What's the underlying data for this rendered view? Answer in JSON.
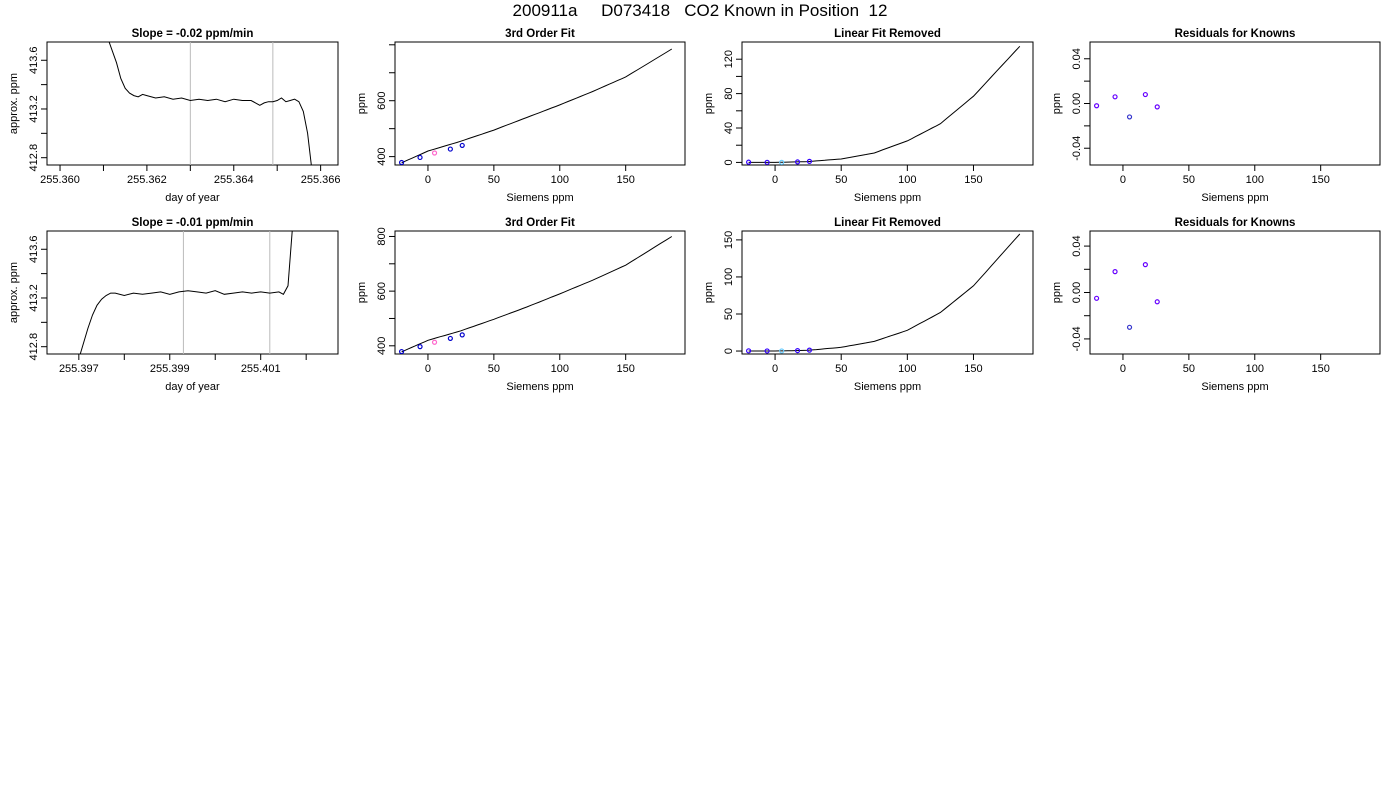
{
  "main_title": "200911a     D073418   CO2 Known in Position  12",
  "chart_data": [
    {
      "type": "line",
      "title": "Slope =  -0.02  ppm/min",
      "xlabel": "day of year",
      "ylabel": "approx. ppm",
      "xlim": [
        255.3597,
        255.3664
      ],
      "ylim": [
        412.74,
        413.75
      ],
      "xticks": [
        255.36,
        255.361,
        255.362,
        255.363,
        255.364,
        255.365,
        255.366
      ],
      "xtick_labels": [
        "255.360",
        "",
        "255.362",
        "",
        "255.364",
        "",
        "255.366"
      ],
      "yticks": [
        412.8,
        413.0,
        413.2,
        413.4,
        413.6
      ],
      "ytick_labels": [
        "412.8",
        "",
        "413.2",
        "",
        "413.6"
      ],
      "vlines": [
        255.363,
        255.3649
      ],
      "series": [
        {
          "x": [
            255.3611,
            255.3613,
            255.3614,
            255.3615,
            255.3616,
            255.3617,
            255.3618,
            255.3619,
            255.362,
            255.3622,
            255.3624,
            255.3626,
            255.3628,
            255.363,
            255.3632,
            255.3634,
            255.3636,
            255.3638,
            255.364,
            255.3642,
            255.3644,
            255.3645,
            255.3646,
            255.3647,
            255.3648,
            255.3649,
            255.365,
            255.3651,
            255.3652,
            255.3653,
            255.3654,
            255.3655,
            255.3656,
            255.3657,
            255.3658
          ],
          "y": [
            413.78,
            413.58,
            413.45,
            413.37,
            413.33,
            413.31,
            413.3,
            413.32,
            413.31,
            413.29,
            413.3,
            413.28,
            413.29,
            413.27,
            413.28,
            413.27,
            413.28,
            413.26,
            413.28,
            413.27,
            413.27,
            413.25,
            413.23,
            413.25,
            413.26,
            413.26,
            413.27,
            413.29,
            413.26,
            413.27,
            413.28,
            413.26,
            413.18,
            413.0,
            412.7
          ]
        }
      ]
    },
    {
      "type": "line",
      "title": "3rd Order Fit",
      "xlabel": "Siemens ppm",
      "ylabel": "ppm",
      "xlim": [
        -25,
        195
      ],
      "ylim": [
        370,
        810
      ],
      "xticks": [
        0,
        50,
        100,
        150
      ],
      "xtick_labels": [
        "0",
        "50",
        "100",
        "150"
      ],
      "yticks": [
        400,
        500,
        600,
        700,
        800
      ],
      "ytick_labels": [
        "400",
        "",
        "600",
        "",
        ""
      ],
      "series": [
        {
          "curve": "fit",
          "x": [
            -20,
            0,
            25,
            50,
            75,
            100,
            125,
            150,
            185
          ],
          "y": [
            378,
            420,
            455,
            495,
            540,
            585,
            633,
            685,
            785
          ]
        }
      ],
      "points": [
        {
          "x": [
            -20,
            -6,
            17,
            26
          ],
          "y": [
            379,
            397,
            427,
            440
          ],
          "color": "#0000cc"
        },
        {
          "x": [
            5
          ],
          "y": [
            413
          ],
          "color": "#ff66cc"
        }
      ]
    },
    {
      "type": "line",
      "title": "Linear Fit Removed",
      "xlabel": "Siemens ppm",
      "ylabel": "ppm",
      "xlim": [
        -25,
        195
      ],
      "ylim": [
        -3,
        140
      ],
      "xticks": [
        0,
        50,
        100,
        150
      ],
      "xtick_labels": [
        "0",
        "50",
        "100",
        "150"
      ],
      "yticks": [
        0,
        20,
        40,
        60,
        80,
        100,
        120
      ],
      "ytick_labels": [
        "0",
        "",
        "40",
        "",
        "80",
        "",
        "120"
      ],
      "series": [
        {
          "curve": "fit",
          "x": [
            -20,
            0,
            25,
            50,
            75,
            100,
            125,
            150,
            185
          ],
          "y": [
            0,
            0,
            1,
            4,
            11,
            25,
            45,
            77,
            135
          ]
        }
      ],
      "points": [
        {
          "x": [
            -20,
            -6,
            17,
            26
          ],
          "y": [
            0.3,
            0.1,
            0.6,
            1.2
          ],
          "color": "#3300ff"
        },
        {
          "x": [
            5
          ],
          "y": [
            0.1
          ],
          "color": "#66ccff"
        }
      ]
    },
    {
      "type": "scatter",
      "title": "Residuals for Knowns",
      "xlabel": "Siemens ppm",
      "ylabel": "ppm",
      "xlim": [
        -25,
        195
      ],
      "ylim": [
        -0.055,
        0.055
      ],
      "xticks": [
        0,
        50,
        100,
        150
      ],
      "xtick_labels": [
        "0",
        "50",
        "100",
        "150"
      ],
      "yticks": [
        -0.04,
        -0.02,
        0.0,
        0.02,
        0.04
      ],
      "ytick_labels": [
        "-0.04",
        "",
        "0.00",
        "",
        "0.04"
      ],
      "points": [
        {
          "x": [
            -20,
            -6,
            17,
            26
          ],
          "y": [
            -0.002,
            0.006,
            0.008,
            -0.003
          ],
          "color": "#6600ff"
        },
        {
          "x": [
            5
          ],
          "y": [
            -0.012
          ],
          "color": "#3333cc"
        }
      ]
    },
    {
      "type": "line",
      "title": "Slope =  -0.01  ppm/min",
      "xlabel": "day of year",
      "ylabel": "approx. ppm",
      "xlim": [
        255.3963,
        255.4027
      ],
      "ylim": [
        412.74,
        413.75
      ],
      "xticks": [
        255.397,
        255.398,
        255.399,
        255.4,
        255.401,
        255.402
      ],
      "xtick_labels": [
        "255.397",
        "",
        "255.399",
        "",
        "255.401",
        ""
      ],
      "yticks": [
        412.8,
        413.0,
        413.2,
        413.4,
        413.6
      ],
      "ytick_labels": [
        "412.8",
        "",
        "413.2",
        "",
        "413.6"
      ],
      "vlines": [
        255.3993,
        255.4012
      ],
      "series": [
        {
          "x": [
            255.397,
            255.3972,
            255.3973,
            255.3974,
            255.3975,
            255.3976,
            255.3977,
            255.3978,
            255.398,
            255.3982,
            255.3984,
            255.3986,
            255.3988,
            255.399,
            255.3992,
            255.3994,
            255.3996,
            255.3998,
            255.4,
            255.4002,
            255.4004,
            255.4006,
            255.4008,
            255.401,
            255.4012,
            255.4014,
            255.4015,
            255.4016,
            255.4017
          ],
          "y": [
            412.7,
            412.95,
            413.06,
            413.14,
            413.19,
            413.22,
            413.24,
            413.24,
            413.22,
            413.24,
            413.23,
            413.24,
            413.25,
            413.23,
            413.25,
            413.26,
            413.25,
            413.24,
            413.26,
            413.23,
            413.24,
            413.25,
            413.24,
            413.25,
            413.24,
            413.25,
            413.23,
            413.3,
            413.78
          ]
        }
      ]
    },
    {
      "type": "line",
      "title": "3rd Order Fit",
      "xlabel": "Siemens ppm",
      "ylabel": "ppm",
      "xlim": [
        -25,
        195
      ],
      "ylim": [
        370,
        820
      ],
      "xticks": [
        0,
        50,
        100,
        150
      ],
      "xtick_labels": [
        "0",
        "50",
        "100",
        "150"
      ],
      "yticks": [
        400,
        500,
        600,
        700,
        800
      ],
      "ytick_labels": [
        "400",
        "",
        "600",
        "",
        "800"
      ],
      "series": [
        {
          "curve": "fit",
          "x": [
            -20,
            0,
            25,
            50,
            75,
            100,
            125,
            150,
            185
          ],
          "y": [
            378,
            420,
            455,
            497,
            542,
            590,
            640,
            695,
            800
          ]
        }
      ],
      "points": [
        {
          "x": [
            -20,
            -6,
            17,
            26
          ],
          "y": [
            379,
            397,
            427,
            440
          ],
          "color": "#0000cc"
        },
        {
          "x": [
            5
          ],
          "y": [
            413
          ],
          "color": "#ff66cc"
        }
      ]
    },
    {
      "type": "line",
      "title": "Linear Fit Removed",
      "xlabel": "Siemens ppm",
      "ylabel": "ppm",
      "xlim": [
        -25,
        195
      ],
      "ylim": [
        -4,
        162
      ],
      "xticks": [
        0,
        50,
        100,
        150
      ],
      "xtick_labels": [
        "0",
        "50",
        "100",
        "150"
      ],
      "yticks": [
        0,
        50,
        100,
        150
      ],
      "ytick_labels": [
        "0",
        "50",
        "100",
        "150"
      ],
      "series": [
        {
          "curve": "fit",
          "x": [
            -20,
            0,
            25,
            50,
            75,
            100,
            125,
            150,
            185
          ],
          "y": [
            0,
            0,
            1,
            5,
            13,
            28,
            52,
            88,
            158
          ]
        }
      ],
      "points": [
        {
          "x": [
            -20,
            -6,
            17,
            26
          ],
          "y": [
            0.3,
            0.1,
            0.6,
            1.2
          ],
          "color": "#3300ff"
        },
        {
          "x": [
            5
          ],
          "y": [
            0.1
          ],
          "color": "#66ccff"
        }
      ]
    },
    {
      "type": "scatter",
      "title": "Residuals for Knowns",
      "xlabel": "Siemens ppm",
      "ylabel": "ppm",
      "xlim": [
        -25,
        195
      ],
      "ylim": [
        -0.053,
        0.053
      ],
      "xticks": [
        0,
        50,
        100,
        150
      ],
      "xtick_labels": [
        "0",
        "50",
        "100",
        "150"
      ],
      "yticks": [
        -0.04,
        -0.02,
        0.0,
        0.02,
        0.04
      ],
      "ytick_labels": [
        "-0.04",
        "",
        "0.00",
        "",
        "0.04"
      ],
      "points": [
        {
          "x": [
            -20,
            -6,
            17,
            26
          ],
          "y": [
            -0.005,
            0.018,
            0.024,
            -0.008
          ],
          "color": "#6600ff"
        },
        {
          "x": [
            5
          ],
          "y": [
            -0.03
          ],
          "color": "#3333cc"
        }
      ]
    }
  ]
}
